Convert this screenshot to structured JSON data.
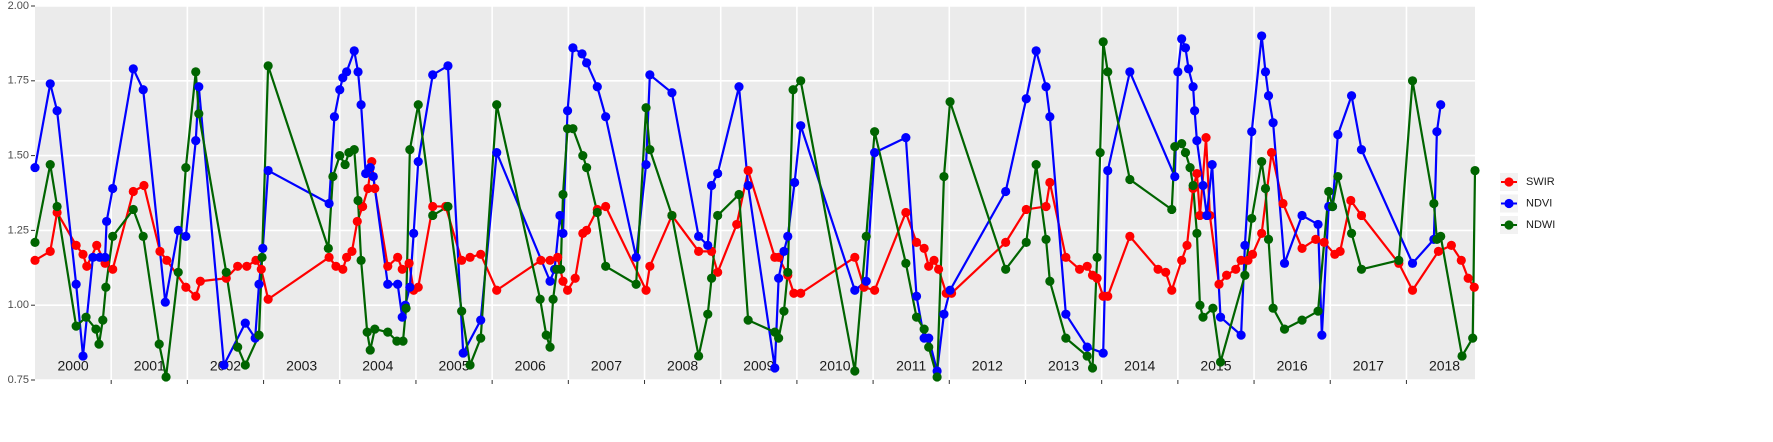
{
  "chart_data": {
    "type": "line",
    "xlim": [
      2000,
      2018.9
    ],
    "xticks": [
      2001,
      2002,
      2003,
      2004,
      2005,
      2006,
      2007,
      2008,
      2009,
      2010,
      2011,
      2012,
      2013,
      2014,
      2015,
      2016,
      2017,
      2018
    ],
    "ylim": [
      0.75,
      2
    ],
    "yticks": [
      0.75,
      {
        "value": 1,
        "label": "1.00"
      },
      1.25,
      {
        "value": 1.5,
        "label": "1.50"
      },
      1.75,
      {
        "value": 2,
        "label": "2.00"
      }
    ],
    "grid": true,
    "legend": "right",
    "year_labels": [
      "2000",
      "2001",
      "2002",
      "2003",
      "2004",
      "2005",
      "2006",
      "2007",
      "2008",
      "2009",
      "2010",
      "2011",
      "2012",
      "2013",
      "2014",
      "2015",
      "2016",
      "2017",
      "2018"
    ],
    "series": [
      {
        "name": "SWIR",
        "color": "#ff0000",
        "x": [
          2000.0,
          2000.2,
          2000.29,
          2000.54,
          2000.63,
          2000.68,
          2000.81,
          2000.92,
          2001.02,
          2001.29,
          2001.43,
          2001.64,
          2001.73,
          2001.98,
          2002.11,
          2002.17,
          2002.51,
          2002.66,
          2002.78,
          2002.9,
          2002.97,
          2003.06,
          2003.86,
          2003.95,
          2004.04,
          2004.09,
          2004.16,
          2004.23,
          2004.3,
          2004.37,
          2004.42,
          2004.46,
          2004.63,
          2004.76,
          2004.82,
          2004.91,
          2004.97,
          2005.03,
          2005.22,
          2005.39,
          2005.6,
          2005.71,
          2005.85,
          2006.06,
          2006.64,
          2006.76,
          2006.86,
          2006.93,
          2006.99,
          2007.09,
          2007.19,
          2007.24,
          2007.38,
          2007.49,
          2008.02,
          2008.07,
          2008.36,
          2008.71,
          2008.88,
          2008.96,
          2009.21,
          2009.36,
          2009.71,
          2009.76,
          2009.88,
          2009.96,
          2010.05,
          2010.76,
          2010.88,
          2011.02,
          2011.43,
          2011.57,
          2011.67,
          2011.73,
          2011.8,
          2011.86,
          2011.96,
          2012.03,
          2012.74,
          2013.01,
          2013.27,
          2013.32,
          2013.53,
          2013.71,
          2013.81,
          2013.88,
          2013.94,
          2014.02,
          2014.08,
          2014.37,
          2014.74,
          2014.84,
          2014.92,
          2015.05,
          2015.12,
          2015.2,
          2015.25,
          2015.29,
          2015.37,
          2015.42,
          2015.54,
          2015.64,
          2015.76,
          2015.83,
          2015.92,
          2015.98,
          2016.1,
          2016.23,
          2016.38,
          2016.63,
          2016.81,
          2016.92,
          2017.06,
          2017.13,
          2017.27,
          2017.41,
          2017.9,
          2018.08,
          2018.42,
          2018.59,
          2018.72,
          2018.81,
          2018.89
        ],
        "values": [
          1.15,
          1.18,
          1.31,
          1.2,
          1.17,
          1.13,
          1.2,
          1.14,
          1.12,
          1.38,
          1.4,
          1.18,
          1.15,
          1.06,
          1.03,
          1.08,
          1.09,
          1.13,
          1.13,
          1.15,
          1.12,
          1.02,
          1.16,
          1.13,
          1.12,
          1.16,
          1.18,
          1.28,
          1.33,
          1.39,
          1.48,
          1.39,
          1.13,
          1.16,
          1.12,
          1.14,
          1.05,
          1.06,
          1.33,
          1.33,
          1.15,
          1.16,
          1.17,
          1.05,
          1.15,
          1.15,
          1.16,
          1.08,
          1.05,
          1.09,
          1.24,
          1.25,
          1.32,
          1.33,
          1.05,
          1.13,
          1.3,
          1.18,
          1.18,
          1.11,
          1.27,
          1.45,
          1.16,
          1.16,
          1.1,
          1.04,
          1.04,
          1.16,
          1.06,
          1.05,
          1.31,
          1.21,
          1.19,
          1.13,
          1.15,
          1.12,
          1.04,
          1.04,
          1.21,
          1.32,
          1.33,
          1.41,
          1.16,
          1.12,
          1.13,
          1.1,
          1.09,
          1.03,
          1.03,
          1.23,
          1.12,
          1.11,
          1.05,
          1.15,
          1.2,
          1.39,
          1.44,
          1.3,
          1.56,
          1.3,
          1.07,
          1.1,
          1.12,
          1.15,
          1.15,
          1.17,
          1.24,
          1.51,
          1.34,
          1.19,
          1.22,
          1.21,
          1.17,
          1.18,
          1.35,
          1.3,
          1.14,
          1.05,
          1.18,
          1.2,
          1.15,
          1.09,
          1.06
        ]
      },
      {
        "name": "NDVI",
        "color": "#0000ff",
        "x": [
          2000.0,
          2000.2,
          2000.29,
          2000.54,
          2000.63,
          2000.76,
          2000.85,
          2000.92,
          2000.94,
          2001.02,
          2001.29,
          2001.42,
          2001.71,
          2001.88,
          2001.98,
          2002.11,
          2002.15,
          2002.48,
          2002.76,
          2002.89,
          2002.94,
          2002.99,
          2003.06,
          2003.86,
          2003.93,
          2004.0,
          2004.04,
          2004.09,
          2004.19,
          2004.24,
          2004.28,
          2004.34,
          2004.4,
          2004.44,
          2004.63,
          2004.76,
          2004.82,
          2004.86,
          2004.92,
          2004.97,
          2005.03,
          2005.22,
          2005.42,
          2005.62,
          2005.85,
          2006.06,
          2006.76,
          2006.82,
          2006.89,
          2006.93,
          2006.99,
          2007.06,
          2007.18,
          2007.24,
          2007.38,
          2007.49,
          2007.89,
          2008.02,
          2008.07,
          2008.36,
          2008.71,
          2008.83,
          2008.88,
          2008.96,
          2009.24,
          2009.36,
          2009.71,
          2009.76,
          2009.83,
          2009.88,
          2009.97,
          2010.05,
          2010.76,
          2010.91,
          2011.02,
          2011.43,
          2011.57,
          2011.67,
          2011.73,
          2011.84,
          2011.93,
          2012.01,
          2012.74,
          2013.01,
          2013.14,
          2013.27,
          2013.32,
          2013.53,
          2013.81,
          2014.02,
          2014.08,
          2014.37,
          2014.96,
          2015.0,
          2015.05,
          2015.1,
          2015.14,
          2015.2,
          2015.22,
          2015.25,
          2015.33,
          2015.38,
          2015.45,
          2015.56,
          2015.83,
          2015.88,
          2015.97,
          2016.1,
          2016.15,
          2016.19,
          2016.25,
          2016.4,
          2016.63,
          2016.84,
          2016.89,
          2016.98,
          2017.03,
          2017.1,
          2017.28,
          2017.41,
          2018.08,
          2018.36,
          2018.4,
          2018.45
        ],
        "values": [
          1.46,
          1.74,
          1.65,
          1.07,
          0.83,
          1.16,
          1.16,
          1.16,
          1.28,
          1.39,
          1.79,
          1.72,
          1.01,
          1.25,
          1.23,
          1.55,
          1.73,
          0.8,
          0.94,
          0.89,
          1.07,
          1.19,
          1.45,
          1.34,
          1.63,
          1.72,
          1.76,
          1.78,
          1.85,
          1.78,
          1.67,
          1.44,
          1.46,
          1.43,
          1.07,
          1.07,
          0.96,
          1.0,
          1.06,
          1.24,
          1.48,
          1.77,
          1.8,
          0.84,
          0.95,
          1.51,
          1.08,
          1.12,
          1.3,
          1.24,
          1.65,
          1.86,
          1.84,
          1.81,
          1.73,
          1.63,
          1.16,
          1.47,
          1.77,
          1.71,
          1.23,
          1.2,
          1.4,
          1.44,
          1.73,
          1.4,
          0.79,
          1.09,
          1.18,
          1.23,
          1.41,
          1.6,
          1.05,
          1.08,
          1.51,
          1.56,
          1.03,
          0.89,
          0.89,
          0.78,
          0.97,
          1.05,
          1.38,
          1.69,
          1.85,
          1.73,
          1.63,
          0.97,
          0.86,
          0.84,
          1.45,
          1.78,
          1.43,
          1.78,
          1.89,
          1.86,
          1.79,
          1.73,
          1.65,
          1.55,
          1.4,
          1.3,
          1.47,
          0.96,
          0.9,
          1.2,
          1.58,
          1.9,
          1.78,
          1.7,
          1.61,
          1.14,
          1.3,
          1.27,
          0.9,
          1.33,
          1.33,
          1.57,
          1.7,
          1.52,
          1.14,
          1.22,
          1.58,
          1.67
        ]
      },
      {
        "name": "NDWI",
        "color": "#006400",
        "x": [
          2000.0,
          2000.2,
          2000.29,
          2000.54,
          2000.67,
          2000.8,
          2000.84,
          2000.89,
          2000.93,
          2001.02,
          2001.29,
          2001.42,
          2001.63,
          2001.72,
          2001.88,
          2001.98,
          2002.11,
          2002.15,
          2002.51,
          2002.66,
          2002.76,
          2002.94,
          2002.98,
          2003.06,
          2003.85,
          2003.91,
          2004.0,
          2004.07,
          2004.12,
          2004.19,
          2004.24,
          2004.28,
          2004.36,
          2004.4,
          2004.46,
          2004.63,
          2004.75,
          2004.83,
          2004.87,
          2004.92,
          2005.03,
          2005.22,
          2005.42,
          2005.6,
          2005.71,
          2005.85,
          2006.06,
          2006.63,
          2006.71,
          2006.76,
          2006.8,
          2006.85,
          2006.9,
          2006.93,
          2006.99,
          2007.06,
          2007.19,
          2007.24,
          2007.38,
          2007.49,
          2007.89,
          2008.02,
          2008.07,
          2008.36,
          2008.71,
          2008.83,
          2008.88,
          2008.96,
          2009.24,
          2009.36,
          2009.71,
          2009.76,
          2009.83,
          2009.88,
          2009.95,
          2010.05,
          2010.76,
          2010.91,
          2011.02,
          2011.43,
          2011.57,
          2011.67,
          2011.73,
          2011.84,
          2011.93,
          2012.01,
          2012.74,
          2013.01,
          2013.14,
          2013.27,
          2013.32,
          2013.53,
          2013.81,
          2013.88,
          2013.94,
          2013.98,
          2014.02,
          2014.08,
          2014.37,
          2014.92,
          2014.96,
          2015.05,
          2015.1,
          2015.16,
          2015.2,
          2015.25,
          2015.29,
          2015.33,
          2015.46,
          2015.56,
          2015.88,
          2015.97,
          2016.1,
          2016.15,
          2016.19,
          2016.25,
          2016.4,
          2016.63,
          2016.84,
          2016.98,
          2017.03,
          2017.1,
          2017.28,
          2017.41,
          2017.9,
          2018.08,
          2018.36,
          2018.4,
          2018.45,
          2018.73,
          2018.87,
          2018.9
        ],
        "values": [
          1.21,
          1.47,
          1.33,
          0.93,
          0.96,
          0.92,
          0.87,
          0.95,
          1.06,
          1.23,
          1.32,
          1.23,
          0.87,
          0.76,
          1.11,
          1.46,
          1.78,
          1.64,
          1.11,
          0.86,
          0.8,
          0.9,
          1.16,
          1.8,
          1.19,
          1.43,
          1.5,
          1.47,
          1.51,
          1.52,
          1.35,
          1.15,
          0.91,
          0.85,
          0.92,
          0.91,
          0.88,
          0.88,
          0.99,
          1.52,
          1.67,
          1.3,
          1.33,
          0.98,
          0.8,
          0.89,
          1.67,
          1.02,
          0.9,
          0.86,
          1.02,
          1.12,
          1.12,
          1.37,
          1.59,
          1.59,
          1.5,
          1.46,
          1.31,
          1.13,
          1.07,
          1.66,
          1.52,
          1.3,
          0.83,
          0.97,
          1.09,
          1.3,
          1.37,
          0.95,
          0.91,
          0.89,
          0.98,
          1.11,
          1.72,
          1.75,
          0.78,
          1.23,
          1.58,
          1.14,
          0.96,
          0.92,
          0.86,
          0.76,
          1.43,
          1.68,
          1.12,
          1.21,
          1.47,
          1.22,
          1.08,
          0.89,
          0.83,
          0.79,
          1.16,
          1.51,
          1.88,
          1.78,
          1.42,
          1.32,
          1.53,
          1.54,
          1.51,
          1.46,
          1.4,
          1.24,
          1.0,
          0.96,
          0.99,
          0.81,
          1.1,
          1.29,
          1.48,
          1.39,
          1.22,
          0.99,
          0.92,
          0.95,
          0.98,
          1.38,
          1.33,
          1.43,
          1.24,
          1.12,
          1.15,
          1.75,
          1.34,
          1.22,
          1.23,
          0.83,
          0.89,
          1.45
        ]
      }
    ]
  }
}
